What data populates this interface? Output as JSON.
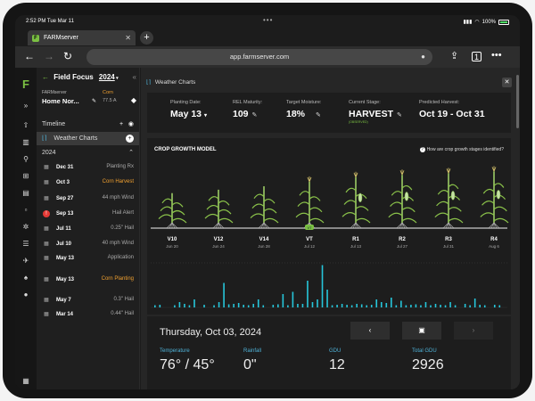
{
  "status_bar": {
    "time": "2:52 PM  Tue Mar 11",
    "battery": "100%"
  },
  "browser": {
    "tab_title": "FARMserver",
    "tab_favicon": "F",
    "url": "app.farmserver.com",
    "icons": [
      "back-icon",
      "forward-icon",
      "reload-icon",
      "mic-icon",
      "share-icon",
      "tabs-icon",
      "more-icon"
    ]
  },
  "rail": {
    "logo": "F",
    "icons": [
      "expand-icon",
      "upload-icon",
      "map-icon",
      "filter-icon",
      "grid-icon",
      "report-icon",
      "doc-icon",
      "gear-icon",
      "list-icon",
      "tractor-icon",
      "bell-icon",
      "info-icon",
      "building-icon"
    ]
  },
  "panel": {
    "header": {
      "title": "Field Focus",
      "year": "2024"
    },
    "farm": {
      "label": "FARMserver",
      "name": "Home Nor...",
      "crop": "Corn",
      "acres": "77.5 A"
    },
    "timeline_label": "Timeline",
    "active_item": "Weather Charts",
    "year_group": "2024",
    "events": [
      {
        "date": "Dec 31",
        "label": "Planting Rx",
        "icon": "calendar-icon",
        "color": "#aaaaaa"
      },
      {
        "date": "Oct 3",
        "label": "Corn Harvest",
        "icon": "calendar-icon",
        "color": "#f0a030"
      },
      {
        "date": "Sep 27",
        "label": "44 mph Wind",
        "icon": "calendar-icon",
        "color": "#aaaaaa"
      },
      {
        "date": "Sep 13",
        "label": "Hail Alert",
        "icon": "alert-icon",
        "color": "#aaaaaa"
      },
      {
        "date": "Jul 11",
        "label": "0.25\" Hail",
        "icon": "calendar-icon",
        "color": "#aaaaaa"
      },
      {
        "date": "Jul 10",
        "label": "40 mph Wind",
        "icon": "calendar-icon",
        "color": "#aaaaaa"
      },
      {
        "date": "May 13",
        "label": "Application",
        "icon": "calendar-icon",
        "color": "#aaaaaa"
      },
      {
        "date": "May 13",
        "label": "Corn Planting",
        "icon": "calendar-icon",
        "color": "#f0a030"
      },
      {
        "date": "May 7",
        "label": "0.3\" Hail",
        "icon": "calendar-icon",
        "color": "#aaaaaa"
      },
      {
        "date": "Mar 14",
        "label": "0.44\" Hail",
        "icon": "calendar-icon",
        "color": "#aaaaaa"
      }
    ]
  },
  "main": {
    "breadcrumb": "Weather Charts",
    "stats": [
      {
        "label": "Planting Date:",
        "value": "May 13",
        "suffix": "▾"
      },
      {
        "label": "REL Maturity:",
        "value": "109",
        "suffix": "✎"
      },
      {
        "label": "Target Moisture:",
        "value": "18%",
        "suffix": "✎"
      },
      {
        "label": "Current Stage:",
        "value": "HARVEST",
        "suffix": "✎",
        "sub": "(OBSERVED)"
      },
      {
        "label": "Predicted Harvest:",
        "value": "Oct 19 - Oct 31",
        "suffix": ""
      }
    ],
    "crop_model": {
      "title": "CROP GROWTH MODEL",
      "help": "How are crop growth stages identified?",
      "stages": [
        {
          "name": "V10",
          "date": "Jun 20",
          "height": 0.52,
          "ear": false,
          "tassel": false,
          "current": false
        },
        {
          "name": "V12",
          "date": "Jun 24",
          "height": 0.58,
          "ear": false,
          "tassel": false,
          "current": false
        },
        {
          "name": "V14",
          "date": "Jun 28",
          "height": 0.64,
          "ear": false,
          "tassel": false,
          "current": false
        },
        {
          "name": "VT",
          "date": "Jul 12",
          "height": 0.72,
          "ear": false,
          "tassel": true,
          "current": true
        },
        {
          "name": "R1",
          "date": "Jul 13",
          "height": 0.8,
          "ear": true,
          "tassel": true,
          "current": false
        },
        {
          "name": "R2",
          "date": "Jul 27",
          "height": 0.84,
          "ear": true,
          "tassel": true,
          "current": false
        },
        {
          "name": "R3",
          "date": "Jul 31",
          "height": 0.87,
          "ear": true,
          "tassel": true,
          "current": false
        },
        {
          "name": "R4",
          "date": "Aug 6",
          "height": 0.9,
          "ear": true,
          "tassel": true,
          "current": false
        }
      ],
      "current_badge": "VT",
      "bar_color": "#26c6da",
      "rain_bars": [
        0.05,
        0.06,
        0.04,
        0.03,
        0.05,
        0.12,
        0.08,
        0.05,
        0.18,
        0.04,
        0.06,
        0.03,
        0.05,
        0.12,
        0.55,
        0.07,
        0.08,
        0.1,
        0.06,
        0.05,
        0.08,
        0.18,
        0.05,
        0.04,
        0.06,
        0.07,
        0.3,
        0.05,
        0.35,
        0.08,
        0.08,
        0.6,
        0.12,
        0.18,
        0.95,
        0.4,
        0.05,
        0.06,
        0.08,
        0.06,
        0.05,
        0.08,
        0.07,
        0.05,
        0.06,
        0.18,
        0.12,
        0.1,
        0.22,
        0.05,
        0.15,
        0.05,
        0.06,
        0.07,
        0.05,
        0.12,
        0.05,
        0.08,
        0.06,
        0.05,
        0.12,
        0.05,
        0.04,
        0.08,
        0.05,
        0.2,
        0.06,
        0.05,
        0.04,
        0.06,
        0.05
      ]
    },
    "day_detail": {
      "date": "Thursday, Oct 03, 2024",
      "metrics": [
        {
          "label": "Temperature",
          "value": "76° / 45°"
        },
        {
          "label": "Rainfall",
          "value": "0\""
        },
        {
          "label": "GDU",
          "value": "12"
        },
        {
          "label": "Total GDU",
          "value": "2926"
        }
      ],
      "nav": [
        "‹",
        "▣",
        "›"
      ]
    }
  }
}
